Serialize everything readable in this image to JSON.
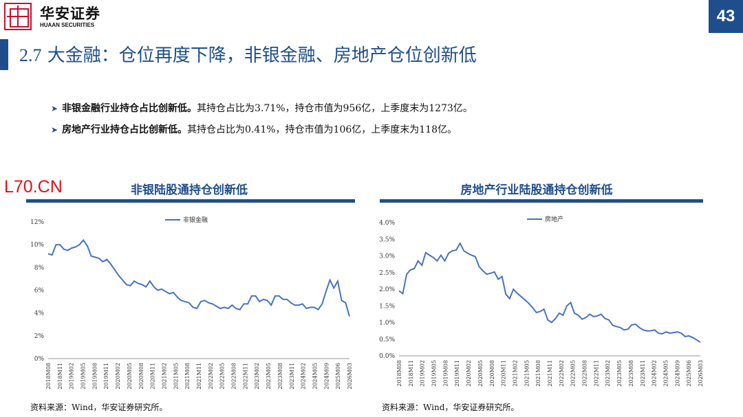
{
  "header": {
    "brand_cn": "华安证券",
    "brand_en": "HUAAN SECURITIES",
    "page_number": "43",
    "colors": {
      "accent": "#1f4e8c",
      "brand_red": "#c8102e"
    },
    "logo_icon": "huaan-seal-logo"
  },
  "title": {
    "number": "2.7",
    "text": "大金融：仓位再度下降，非银金融、房地产仓位创新低"
  },
  "bullets": [
    {
      "lead": "非银金融行业持仓占比创新低。",
      "rest": "其持仓占比为3.71%，持仓市值为956亿，上季度末为1273亿。"
    },
    {
      "lead": "房地产行业持仓占比创新低。",
      "rest": "其持仓占比为0.41%，持仓市值为106亿，上季度末为118亿。"
    }
  ],
  "watermark": "L70.CN",
  "left_panel": {
    "title": "非银陆股通持仓创新低",
    "source": "资料来源：Wind，华安证券研究所。"
  },
  "right_panel": {
    "title": "房地产行业陆股通持仓创新低",
    "source": "资料来源：Wind，华安证券研究所。"
  },
  "chart_data": [
    {
      "type": "line",
      "series": [
        {
          "name": "非银金融",
          "color": "#4472c4",
          "values": [
            9.2,
            9.1,
            10.0,
            10.0,
            9.6,
            9.5,
            9.7,
            9.8,
            10.0,
            10.4,
            9.9,
            9.0,
            8.9,
            8.8,
            8.5,
            8.7,
            8.3,
            7.8,
            7.3,
            6.9,
            6.5,
            6.4,
            6.8,
            6.6,
            6.5,
            6.3,
            6.8,
            6.3,
            6.0,
            6.1,
            5.9,
            5.7,
            5.8,
            5.4,
            5.1,
            5.0,
            4.9,
            4.5,
            4.4,
            5.0,
            5.1,
            4.9,
            4.8,
            4.6,
            4.4,
            4.5,
            4.4,
            4.7,
            4.4,
            4.3,
            4.8,
            4.8,
            5.5,
            5.5,
            5.0,
            5.2,
            5.1,
            4.7,
            5.5,
            5.5,
            5.2,
            5.2,
            4.9,
            4.7,
            4.7,
            4.8,
            4.4,
            4.5,
            4.5,
            4.3,
            4.8,
            5.9,
            6.9,
            6.2,
            6.8,
            5.1,
            4.9,
            3.71
          ]
        }
      ],
      "x_ticks": [
        "2018M08",
        "2018M11",
        "2019M02",
        "2019M05",
        "2019M08",
        "2019M11",
        "2020M02",
        "2020M05",
        "2020M08",
        "2020M11",
        "2021M02",
        "2021M05",
        "2021M08",
        "2021M11",
        "2022M02",
        "2022M05",
        "2022M08",
        "2022M11",
        "2023M02",
        "2023M05",
        "2023M08",
        "2023M11",
        "2024M02",
        "2024M05",
        "2024M09",
        "2025M06",
        "2026M03"
      ],
      "y_ticks": [
        "0%",
        "2%",
        "4%",
        "6%",
        "8%",
        "10%",
        "12%"
      ],
      "ylim": [
        0,
        12
      ],
      "legend": "top-center",
      "grid": false
    },
    {
      "type": "line",
      "series": [
        {
          "name": "房地产",
          "color": "#4472c4",
          "values": [
            1.95,
            1.87,
            2.45,
            2.58,
            2.62,
            2.85,
            2.72,
            3.1,
            3.02,
            2.95,
            2.85,
            3.02,
            2.85,
            3.08,
            3.15,
            3.18,
            3.38,
            3.15,
            3.08,
            3.02,
            2.98,
            2.68,
            2.55,
            2.45,
            2.48,
            2.52,
            2.3,
            2.38,
            1.85,
            1.72,
            2.0,
            1.88,
            1.78,
            1.68,
            1.58,
            1.45,
            1.3,
            1.33,
            1.4,
            1.08,
            1.0,
            1.12,
            1.28,
            1.22,
            1.5,
            1.6,
            1.28,
            1.22,
            1.1,
            1.15,
            1.25,
            1.18,
            1.2,
            1.25,
            1.12,
            1.08,
            0.92,
            0.88,
            0.85,
            0.78,
            0.8,
            0.93,
            0.95,
            0.85,
            0.78,
            0.75,
            0.75,
            0.78,
            0.68,
            0.66,
            0.72,
            0.68,
            0.7,
            0.72,
            0.68,
            0.58,
            0.6,
            0.55,
            0.48,
            0.41
          ]
        }
      ],
      "x_ticks": [
        "2018M08",
        "2018M11",
        "2019M02",
        "2019M05",
        "2019M08",
        "2019M11",
        "2020M02",
        "2020M05",
        "2020M08",
        "2020M11",
        "2021M02",
        "2021M05",
        "2021M08",
        "2021M11",
        "2022M02",
        "2022M05",
        "2022M08",
        "2022M11",
        "2023M02",
        "2023M05",
        "2023M08",
        "2023M11",
        "2024M02",
        "2024M05",
        "2024M09",
        "2025M06",
        "2026M03"
      ],
      "y_ticks": [
        "0.0%",
        "0.5%",
        "1.0%",
        "1.5%",
        "2.0%",
        "2.5%",
        "3.0%",
        "3.5%",
        "4.0%"
      ],
      "ylim": [
        0,
        4
      ],
      "legend": "top-center",
      "grid": false
    }
  ]
}
